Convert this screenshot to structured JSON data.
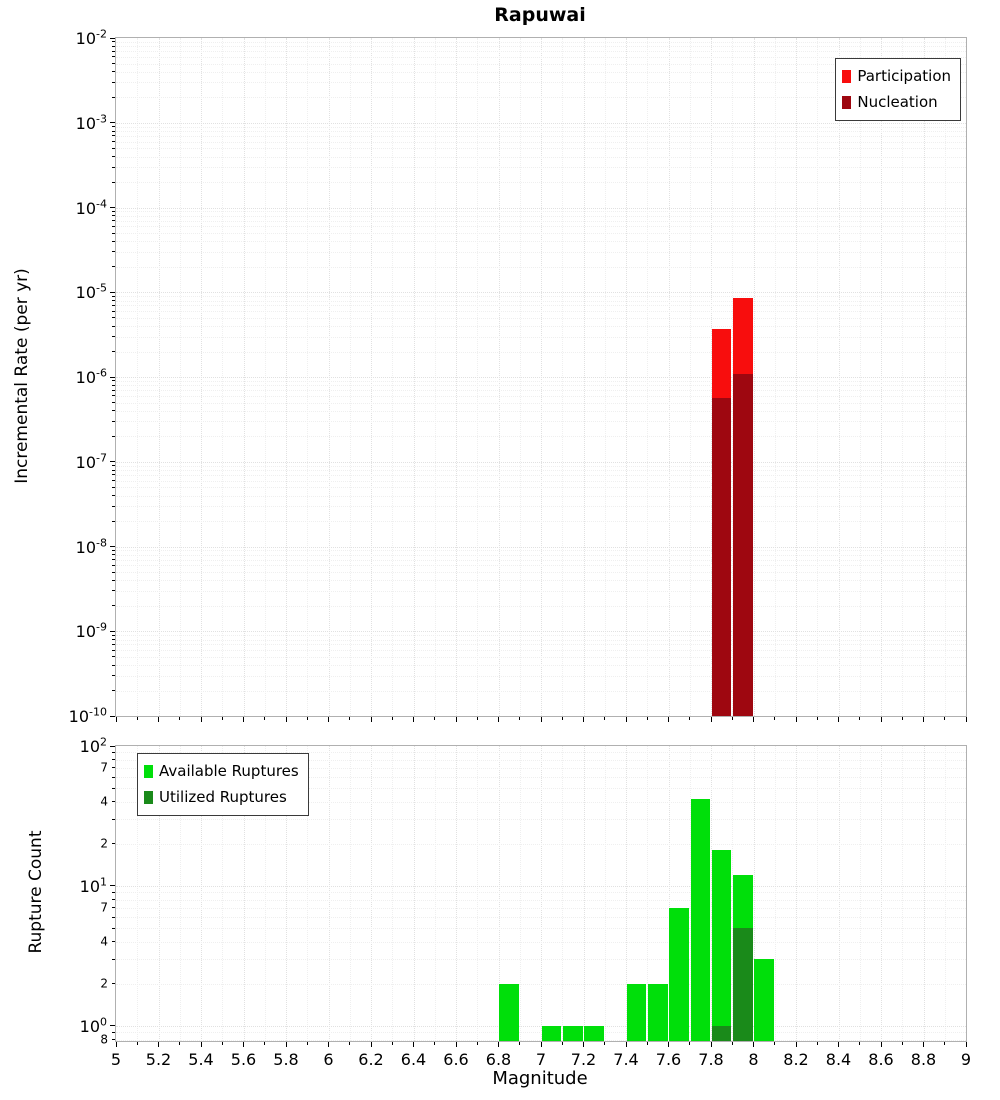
{
  "title": "Rapuwai",
  "colors": {
    "participation": "#f80d0d",
    "nucleation": "#9e0710",
    "available": "#00df0a",
    "utilized": "#1a8a1a",
    "grid_minor": "#efefef",
    "grid_major": "#e1e1e1",
    "frame": "#b0b0b0"
  },
  "x_axis": {
    "label": "Magnitude",
    "tick_values": [
      5,
      5.2,
      5.4,
      5.6,
      5.8,
      6,
      6.2,
      6.4,
      6.6,
      6.8,
      7,
      7.2,
      7.4,
      7.6,
      7.8,
      8,
      8.2,
      8.4,
      8.6,
      8.8,
      9
    ],
    "tick_labels": [
      "5",
      "5.2",
      "5.4",
      "5.6",
      "5.8",
      "6",
      "6.2",
      "6.4",
      "6.6",
      "6.8",
      "7",
      "7.2",
      "7.4",
      "7.6",
      "7.8",
      "8",
      "8.2",
      "8.4",
      "8.6",
      "8.8",
      "9"
    ]
  },
  "chart_data": [
    {
      "id": "incremental-rate",
      "type": "bar",
      "title": "Rapuwai",
      "ylabel": "Incremental Rate (per yr)",
      "yscale": "log",
      "xlim": [
        5,
        9
      ],
      "ylim": [
        1e-10,
        0.01
      ],
      "bin_width": 0.1,
      "show_x_tick_labels": false,
      "y_major_exponents": [
        -2,
        -3,
        -4,
        -5,
        -6,
        -7,
        -8,
        -9,
        -10
      ],
      "legend_position": "top-right",
      "series": [
        {
          "name": "Participation",
          "color_key": "participation",
          "points": [
            {
              "x": 7.85,
              "y": 3.7e-06
            },
            {
              "x": 7.95,
              "y": 8.5e-06
            }
          ]
        },
        {
          "name": "Nucleation",
          "color_key": "nucleation",
          "points": [
            {
              "x": 7.85,
              "y": 5.6e-07
            },
            {
              "x": 7.95,
              "y": 1.1e-06
            }
          ]
        }
      ]
    },
    {
      "id": "rupture-count",
      "type": "bar",
      "ylabel": "Rupture Count",
      "yscale": "log",
      "xlim": [
        5,
        9
      ],
      "ylim": [
        0.78,
        100
      ],
      "bin_width": 0.1,
      "show_x_tick_labels": true,
      "y_major_exponents": [
        2,
        1,
        0
      ],
      "y_minor_labeled": [
        {
          "value": 70,
          "label": "7"
        },
        {
          "value": 40,
          "label": "4"
        },
        {
          "value": 20,
          "label": "2"
        },
        {
          "value": 7,
          "label": "7"
        },
        {
          "value": 4,
          "label": "4"
        },
        {
          "value": 2,
          "label": "2"
        },
        {
          "value": 0.8,
          "label": "8"
        }
      ],
      "legend_position": "top-left",
      "series": [
        {
          "name": "Available Ruptures",
          "color_key": "available",
          "points": [
            {
              "x": 6.85,
              "y": 2
            },
            {
              "x": 7.05,
              "y": 1
            },
            {
              "x": 7.15,
              "y": 1
            },
            {
              "x": 7.25,
              "y": 1
            },
            {
              "x": 7.45,
              "y": 2
            },
            {
              "x": 7.55,
              "y": 2
            },
            {
              "x": 7.65,
              "y": 7
            },
            {
              "x": 7.75,
              "y": 42
            },
            {
              "x": 7.85,
              "y": 18
            },
            {
              "x": 7.95,
              "y": 12
            },
            {
              "x": 8.05,
              "y": 3
            }
          ]
        },
        {
          "name": "Utilized Ruptures",
          "color_key": "utilized",
          "points": [
            {
              "x": 7.85,
              "y": 1
            },
            {
              "x": 7.95,
              "y": 5
            }
          ]
        }
      ]
    }
  ]
}
